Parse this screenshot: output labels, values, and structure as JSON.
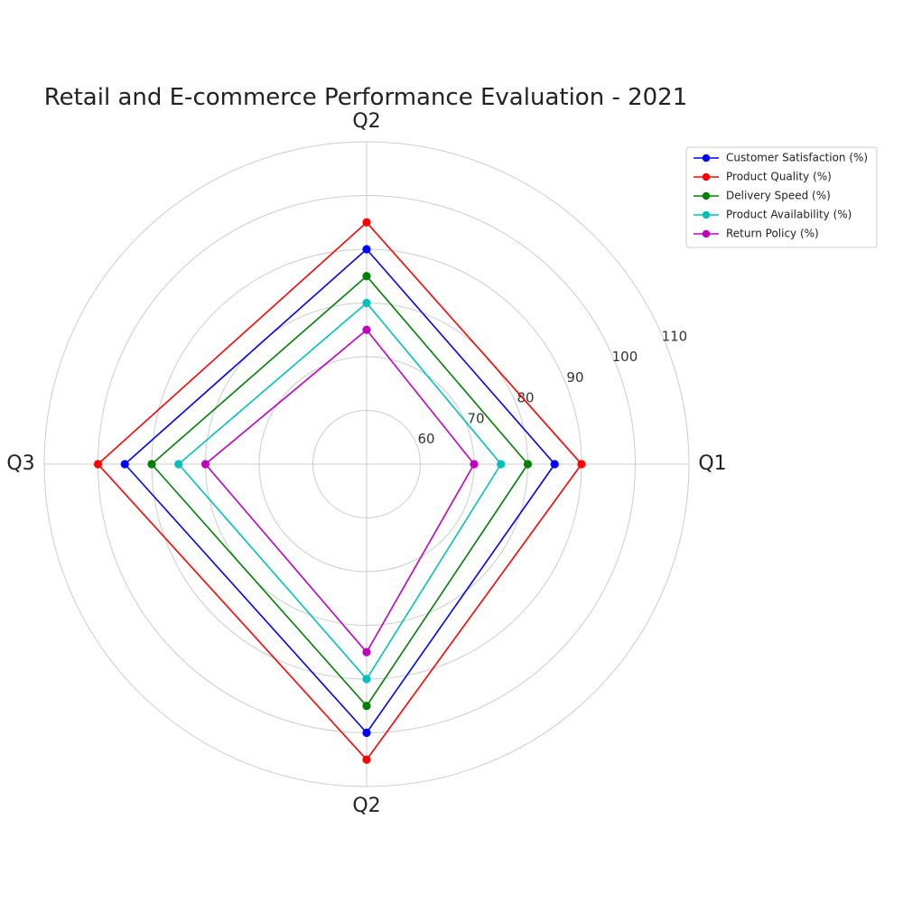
{
  "chart_data": {
    "type": "radar",
    "title": "Retail and E-commerce Performance Evaluation - 2021",
    "categories": [
      "Q1",
      "Q2",
      "Q3",
      "Q2"
    ],
    "rlim": [
      50,
      110
    ],
    "r_ticks": [
      60,
      70,
      80,
      90,
      100,
      110
    ],
    "grid": true,
    "legend_position": "top-right",
    "series": [
      {
        "name": "Customer Satisfaction (%)",
        "color": "#0000ff",
        "values": [
          85,
          90,
          95,
          100
        ]
      },
      {
        "name": "Product Quality (%)",
        "color": "#ff0000",
        "values": [
          90,
          95,
          100,
          105
        ]
      },
      {
        "name": "Delivery Speed (%)",
        "color": "#008000",
        "values": [
          80,
          85,
          90,
          95
        ]
      },
      {
        "name": "Product Availability (%)",
        "color": "#00bfbf",
        "values": [
          75,
          80,
          85,
          90
        ]
      },
      {
        "name": "Return Policy (%)",
        "color": "#bf00bf",
        "values": [
          70,
          75,
          80,
          85
        ]
      }
    ]
  }
}
